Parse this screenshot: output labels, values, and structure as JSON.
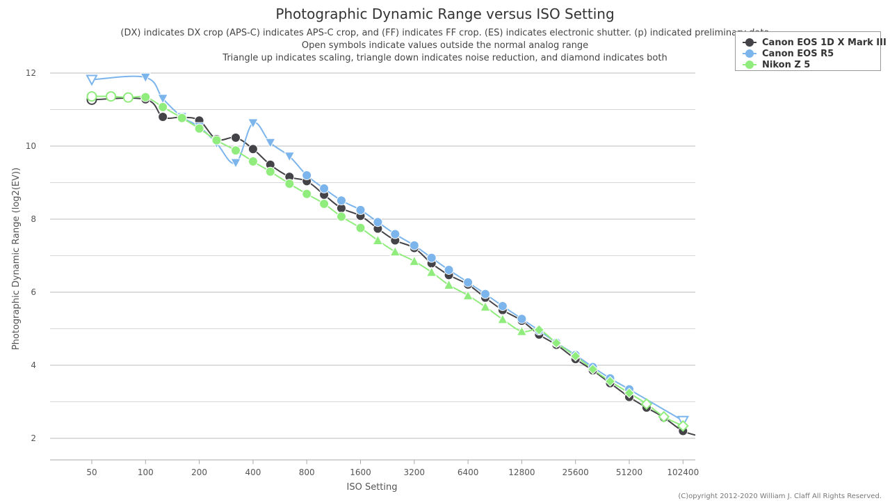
{
  "title": "Photographic Dynamic Range versus ISO Setting",
  "subtitle_lines": [
    "(DX) indicates DX crop (APS-C) indicates APS-C crop, and (FF) indicates FF crop. (ES) indicates electronic shutter. (p) indicated preliminary data",
    "Open symbols indicate values outside the normal analog range",
    "Triangle up indicates scaling, triangle down indicates noise reduction, and diamond indicates both"
  ],
  "copyright": "(C)opyright 2012-2020 William J. Claff All Rights Reserved.",
  "chart_data": {
    "type": "line",
    "title": "Photographic Dynamic Range versus ISO Setting",
    "xlabel": "ISO Setting",
    "ylabel": "Photographic Dynamic Range (log2(EV))",
    "x_scale": "log2",
    "xlim": [
      35,
      110000
    ],
    "ylim": [
      1.4,
      12.2
    ],
    "x_ticks": [
      50,
      100,
      200,
      400,
      800,
      1600,
      3200,
      6400,
      12800,
      25600,
      51200,
      102400
    ],
    "y_ticks": [
      2,
      4,
      6,
      8,
      10,
      12
    ],
    "grid": true,
    "legend_position": "top-right",
    "series": [
      {
        "name": "Canon EOS 1D X Mark III",
        "color": "#434348",
        "points": [
          {
            "x": 50,
            "y": 11.27,
            "m": "open-circle"
          },
          {
            "x": 100,
            "y": 11.28,
            "m": "circle"
          },
          {
            "x": 125,
            "y": 10.8,
            "m": "circle"
          },
          {
            "x": 160,
            "y": 10.79,
            "m": "circle"
          },
          {
            "x": 200,
            "y": 10.7,
            "m": "circle"
          },
          {
            "x": 250,
            "y": 10.19,
            "m": "circle"
          },
          {
            "x": 320,
            "y": 10.23,
            "m": "circle"
          },
          {
            "x": 400,
            "y": 9.92,
            "m": "circle"
          },
          {
            "x": 500,
            "y": 9.49,
            "m": "circle"
          },
          {
            "x": 640,
            "y": 9.16,
            "m": "circle"
          },
          {
            "x": 800,
            "y": 9.04,
            "m": "circle"
          },
          {
            "x": 1000,
            "y": 8.67,
            "m": "circle"
          },
          {
            "x": 1250,
            "y": 8.3,
            "m": "circle"
          },
          {
            "x": 1600,
            "y": 8.09,
            "m": "circle"
          },
          {
            "x": 2000,
            "y": 7.74,
            "m": "circle"
          },
          {
            "x": 2500,
            "y": 7.42,
            "m": "circle"
          },
          {
            "x": 3200,
            "y": 7.21,
            "m": "circle"
          },
          {
            "x": 4000,
            "y": 6.79,
            "m": "circle"
          },
          {
            "x": 5000,
            "y": 6.47,
            "m": "circle"
          },
          {
            "x": 6400,
            "y": 6.21,
            "m": "circle"
          },
          {
            "x": 8000,
            "y": 5.85,
            "m": "circle"
          },
          {
            "x": 10000,
            "y": 5.51,
            "m": "circle"
          },
          {
            "x": 12800,
            "y": 5.22,
            "m": "circle"
          },
          {
            "x": 16000,
            "y": 4.84,
            "m": "circle"
          },
          {
            "x": 20000,
            "y": 4.56,
            "m": "circle"
          },
          {
            "x": 25600,
            "y": 4.17,
            "m": "circle"
          },
          {
            "x": 32000,
            "y": 3.86,
            "m": "circle"
          },
          {
            "x": 40000,
            "y": 3.51,
            "m": "circle"
          },
          {
            "x": 51200,
            "y": 3.13,
            "m": "circle"
          },
          {
            "x": 64000,
            "y": 2.84,
            "m": "circle"
          },
          {
            "x": 80000,
            "y": 2.57,
            "m": "circle"
          },
          {
            "x": 102400,
            "y": 2.2,
            "m": "circle"
          },
          {
            "x": 130000,
            "y": 2.05,
            "m": "none"
          }
        ]
      },
      {
        "name": "Canon EOS R5",
        "color": "#7cb5ec",
        "points": [
          {
            "x": 50,
            "y": 11.82,
            "m": "open-triangle-down"
          },
          {
            "x": 100,
            "y": 11.88,
            "m": "triangle-down"
          },
          {
            "x": 125,
            "y": 11.3,
            "m": "triangle-down"
          },
          {
            "x": 160,
            "y": 10.8,
            "m": "triangle-down"
          },
          {
            "x": 200,
            "y": 10.53,
            "m": "triangle-down"
          },
          {
            "x": 250,
            "y": 10.08,
            "m": "triangle-down"
          },
          {
            "x": 320,
            "y": 9.54,
            "m": "triangle-down"
          },
          {
            "x": 400,
            "y": 10.63,
            "m": "triangle-down"
          },
          {
            "x": 500,
            "y": 10.09,
            "m": "triangle-down"
          },
          {
            "x": 640,
            "y": 9.72,
            "m": "triangle-down"
          },
          {
            "x": 800,
            "y": 9.2,
            "m": "circle"
          },
          {
            "x": 1000,
            "y": 8.84,
            "m": "circle"
          },
          {
            "x": 1250,
            "y": 8.51,
            "m": "circle"
          },
          {
            "x": 1600,
            "y": 8.25,
            "m": "circle"
          },
          {
            "x": 2000,
            "y": 7.92,
            "m": "circle"
          },
          {
            "x": 2500,
            "y": 7.59,
            "m": "circle"
          },
          {
            "x": 3200,
            "y": 7.28,
            "m": "circle"
          },
          {
            "x": 4000,
            "y": 6.94,
            "m": "circle"
          },
          {
            "x": 5000,
            "y": 6.61,
            "m": "circle"
          },
          {
            "x": 6400,
            "y": 6.27,
            "m": "circle"
          },
          {
            "x": 8000,
            "y": 5.95,
            "m": "circle"
          },
          {
            "x": 10000,
            "y": 5.62,
            "m": "circle"
          },
          {
            "x": 12800,
            "y": 5.27,
            "m": "circle"
          },
          {
            "x": 16000,
            "y": 4.95,
            "m": "circle"
          },
          {
            "x": 20000,
            "y": 4.62,
            "m": "circle"
          },
          {
            "x": 25600,
            "y": 4.28,
            "m": "circle"
          },
          {
            "x": 32000,
            "y": 3.95,
            "m": "circle"
          },
          {
            "x": 40000,
            "y": 3.64,
            "m": "circle"
          },
          {
            "x": 51200,
            "y": 3.34,
            "m": "circle"
          },
          {
            "x": 102400,
            "y": 2.48,
            "m": "open-triangle-down"
          }
        ]
      },
      {
        "name": "Nikon Z 5",
        "color": "#90ed7d",
        "points": [
          {
            "x": 50,
            "y": 11.36,
            "m": "open-circle"
          },
          {
            "x": 64,
            "y": 11.36,
            "m": "open-circle"
          },
          {
            "x": 80,
            "y": 11.33,
            "m": "open-circle"
          },
          {
            "x": 100,
            "y": 11.34,
            "m": "circle"
          },
          {
            "x": 125,
            "y": 11.07,
            "m": "circle"
          },
          {
            "x": 160,
            "y": 10.77,
            "m": "circle"
          },
          {
            "x": 200,
            "y": 10.48,
            "m": "circle"
          },
          {
            "x": 250,
            "y": 10.16,
            "m": "circle"
          },
          {
            "x": 320,
            "y": 9.88,
            "m": "circle"
          },
          {
            "x": 400,
            "y": 9.58,
            "m": "circle"
          },
          {
            "x": 500,
            "y": 9.3,
            "m": "circle"
          },
          {
            "x": 640,
            "y": 8.97,
            "m": "circle"
          },
          {
            "x": 800,
            "y": 8.69,
            "m": "circle"
          },
          {
            "x": 1000,
            "y": 8.42,
            "m": "circle"
          },
          {
            "x": 1250,
            "y": 8.07,
            "m": "circle"
          },
          {
            "x": 1600,
            "y": 7.76,
            "m": "circle"
          },
          {
            "x": 2000,
            "y": 7.42,
            "m": "triangle-up"
          },
          {
            "x": 2500,
            "y": 7.11,
            "m": "triangle-up"
          },
          {
            "x": 3200,
            "y": 6.85,
            "m": "triangle-up"
          },
          {
            "x": 4000,
            "y": 6.55,
            "m": "triangle-up"
          },
          {
            "x": 5000,
            "y": 6.2,
            "m": "triangle-up"
          },
          {
            "x": 6400,
            "y": 5.91,
            "m": "triangle-up"
          },
          {
            "x": 8000,
            "y": 5.6,
            "m": "triangle-up"
          },
          {
            "x": 10000,
            "y": 5.26,
            "m": "triangle-up"
          },
          {
            "x": 12800,
            "y": 4.93,
            "m": "triangle-up"
          },
          {
            "x": 16000,
            "y": 4.97,
            "m": "diamond"
          },
          {
            "x": 20000,
            "y": 4.61,
            "m": "diamond"
          },
          {
            "x": 25600,
            "y": 4.25,
            "m": "diamond"
          },
          {
            "x": 32000,
            "y": 3.89,
            "m": "diamond"
          },
          {
            "x": 40000,
            "y": 3.56,
            "m": "diamond"
          },
          {
            "x": 51200,
            "y": 3.24,
            "m": "diamond"
          },
          {
            "x": 64000,
            "y": 2.94,
            "m": "open-diamond"
          },
          {
            "x": 80000,
            "y": 2.59,
            "m": "open-diamond"
          },
          {
            "x": 102400,
            "y": 2.34,
            "m": "open-diamond"
          }
        ]
      }
    ]
  }
}
